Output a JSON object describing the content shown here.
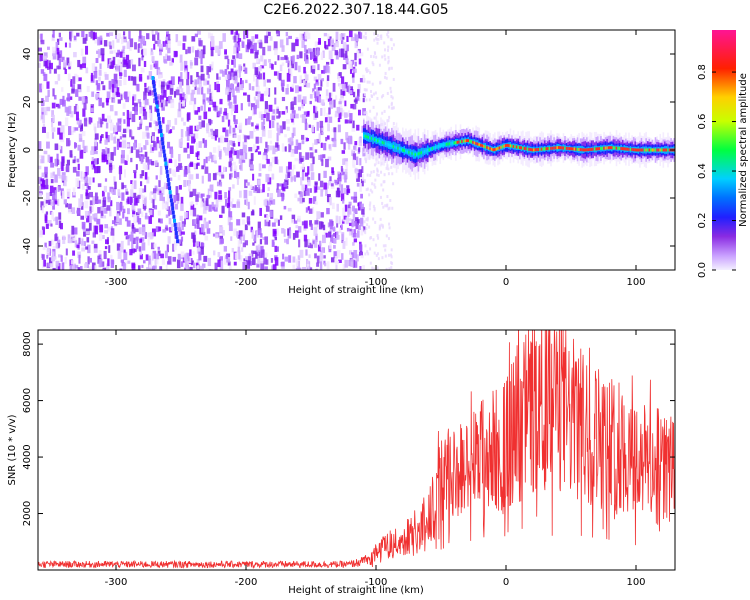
{
  "figure_title": "C2E6.2022.307.18.44.G05",
  "colors": {
    "snr_line": "#f03030",
    "frame": "#000000",
    "colormap": [
      "#f0f0ff",
      "#d9b3ff",
      "#8a2be2",
      "#0000ff",
      "#00c8ff",
      "#00ff00",
      "#ffff00",
      "#ff8000",
      "#ff0000",
      "#ff1493"
    ]
  },
  "chart_data": [
    {
      "type": "heatmap",
      "xlabel": "Height of straight line (km)",
      "ylabel": "Frequency (Hz)",
      "xlim": [
        -360,
        130
      ],
      "ylim": [
        -50,
        50
      ],
      "x_ticks": [
        -300,
        -200,
        -100,
        0,
        100
      ],
      "y_ticks": [
        -40,
        -20,
        0,
        20,
        40
      ],
      "grid": false,
      "colorbar": {
        "label": "Normalized spectral amplitude",
        "range": [
          0,
          0.97
        ],
        "ticks": [
          0.0,
          0.2,
          0.4,
          0.6,
          0.8
        ]
      },
      "features": {
        "noise_region_x": [
          -360,
          -110
        ],
        "signal_region_x": [
          -110,
          130
        ],
        "doppler_curve": {
          "x": [
            -110,
            -100,
            -90,
            -80,
            -70,
            -60,
            -50,
            -40,
            -30,
            -20,
            -10,
            0,
            20,
            40,
            60,
            80,
            100,
            130
          ],
          "y": [
            6,
            4,
            2,
            0,
            -2,
            0,
            2,
            3,
            4,
            2,
            0,
            2,
            0,
            1,
            0,
            1,
            0,
            0
          ]
        },
        "streak": {
          "x": [
            -272,
            -253
          ],
          "y": [
            30,
            -38
          ]
        }
      }
    },
    {
      "type": "line",
      "xlabel": "Height of straight line (km)",
      "ylabel": "SNR (10 * v/v)",
      "xlim": [
        -360,
        130
      ],
      "ylim": [
        0,
        8500
      ],
      "x_ticks": [
        -300,
        -200,
        -100,
        0,
        100
      ],
      "y_ticks": [
        2000,
        4000,
        6000,
        8000
      ],
      "grid": false,
      "series": [
        {
          "x": [
            -360,
            -300,
            -200,
            -120,
            -105,
            -100,
            -90,
            -80,
            -70,
            -60,
            -50,
            -40,
            -30,
            -20,
            -10,
            0,
            10,
            20,
            30,
            40,
            50,
            60,
            70,
            80,
            90,
            100,
            110,
            120,
            130
          ],
          "y": [
            200,
            200,
            200,
            200,
            350,
            700,
            900,
            1000,
            1400,
            1800,
            3000,
            3500,
            3500,
            4000,
            4200,
            4500,
            5200,
            5800,
            6000,
            5900,
            5400,
            5000,
            4800,
            4500,
            4200,
            4000,
            3800,
            3700,
            3500
          ]
        }
      ]
    }
  ]
}
